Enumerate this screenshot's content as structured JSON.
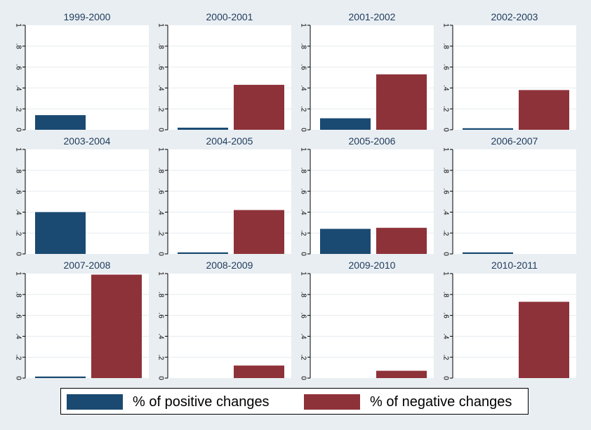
{
  "chart_data": {
    "type": "bar",
    "layout": "small-multiples",
    "legend_position": "bottom",
    "grid": true,
    "ylim": [
      0,
      1
    ],
    "yticks": [
      "0",
      ".2",
      ".4",
      ".6",
      ".8",
      "1"
    ],
    "series": [
      {
        "name": "% of positive changes",
        "color": "#1a4a72"
      },
      {
        "name": "% of negative changes",
        "color": "#8e3239"
      }
    ],
    "panels": [
      {
        "title": "1999-2000",
        "values": [
          0.14,
          0
        ]
      },
      {
        "title": "2000-2001",
        "values": [
          0.02,
          0.43
        ]
      },
      {
        "title": "2001-2002",
        "values": [
          0.11,
          0.53
        ]
      },
      {
        "title": "2002-2003",
        "values": [
          0.015,
          0.38
        ]
      },
      {
        "title": "2003-2004",
        "values": [
          0.4,
          0
        ]
      },
      {
        "title": "2004-2005",
        "values": [
          0.015,
          0.42
        ]
      },
      {
        "title": "2005-2006",
        "values": [
          0.24,
          0.25
        ]
      },
      {
        "title": "2006-2007",
        "values": [
          0.015,
          0
        ]
      },
      {
        "title": "2007-2008",
        "values": [
          0.015,
          0.99
        ]
      },
      {
        "title": "2008-2009",
        "values": [
          0,
          0.12
        ]
      },
      {
        "title": "2009-2010",
        "values": [
          0,
          0.07
        ]
      },
      {
        "title": "2010-2011",
        "values": [
          0,
          0.73
        ]
      }
    ]
  },
  "legend": {
    "positive_label": "% of positive changes",
    "negative_label": "% of negative changes"
  }
}
